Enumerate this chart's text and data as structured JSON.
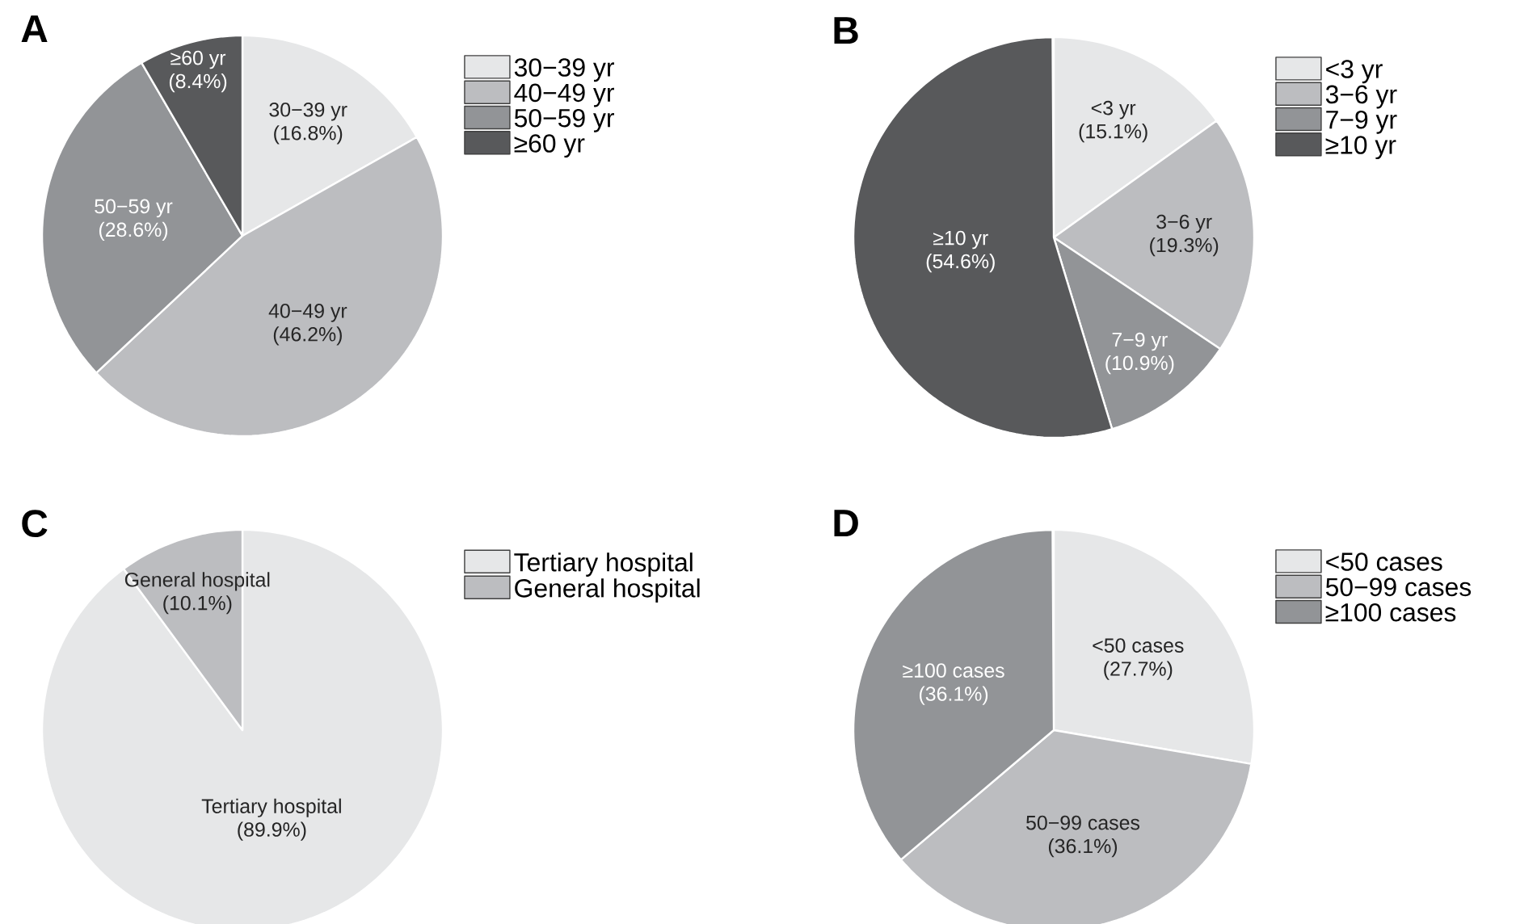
{
  "chart_data": [
    {
      "type": "pie",
      "title": "A",
      "categories": [
        "30−39 yr",
        "40−49 yr",
        "50−59 yr",
        "≥60 yr"
      ],
      "values": [
        16.8,
        46.2,
        28.6,
        8.4
      ],
      "colors": [
        "#e6e7e8",
        "#bcbdc0",
        "#929497",
        "#58595b"
      ],
      "value_labels": [
        "(16.8%)",
        "(46.2%)",
        "(28.6%)",
        "(8.4%)"
      ],
      "legend": "right"
    },
    {
      "type": "pie",
      "title": "B",
      "categories": [
        "<3 yr",
        "3−6 yr",
        "7−9 yr",
        "≥10 yr"
      ],
      "values": [
        15.1,
        19.3,
        10.9,
        54.6
      ],
      "colors": [
        "#e6e7e8",
        "#bcbdc0",
        "#929497",
        "#58595b"
      ],
      "value_labels": [
        "(15.1%)",
        "(19.3%)",
        "(10.9%)",
        "(54.6%)"
      ],
      "legend": "right"
    },
    {
      "type": "pie",
      "title": "C",
      "categories": [
        "Tertiary hospital",
        "General hospital"
      ],
      "values": [
        89.9,
        10.1
      ],
      "colors": [
        "#e6e7e8",
        "#bcbdc0"
      ],
      "value_labels": [
        "(89.9%)",
        "(10.1%)"
      ],
      "legend": "right"
    },
    {
      "type": "pie",
      "title": "D",
      "categories": [
        "<50 cases",
        "50−99 cases",
        "≥100 cases"
      ],
      "values": [
        27.7,
        36.1,
        36.1
      ],
      "colors": [
        "#e6e7e8",
        "#bcbdc0",
        "#929497"
      ],
      "value_labels": [
        "(27.7%)",
        "(36.1%)",
        "(36.1%)"
      ],
      "legend": "right"
    }
  ]
}
